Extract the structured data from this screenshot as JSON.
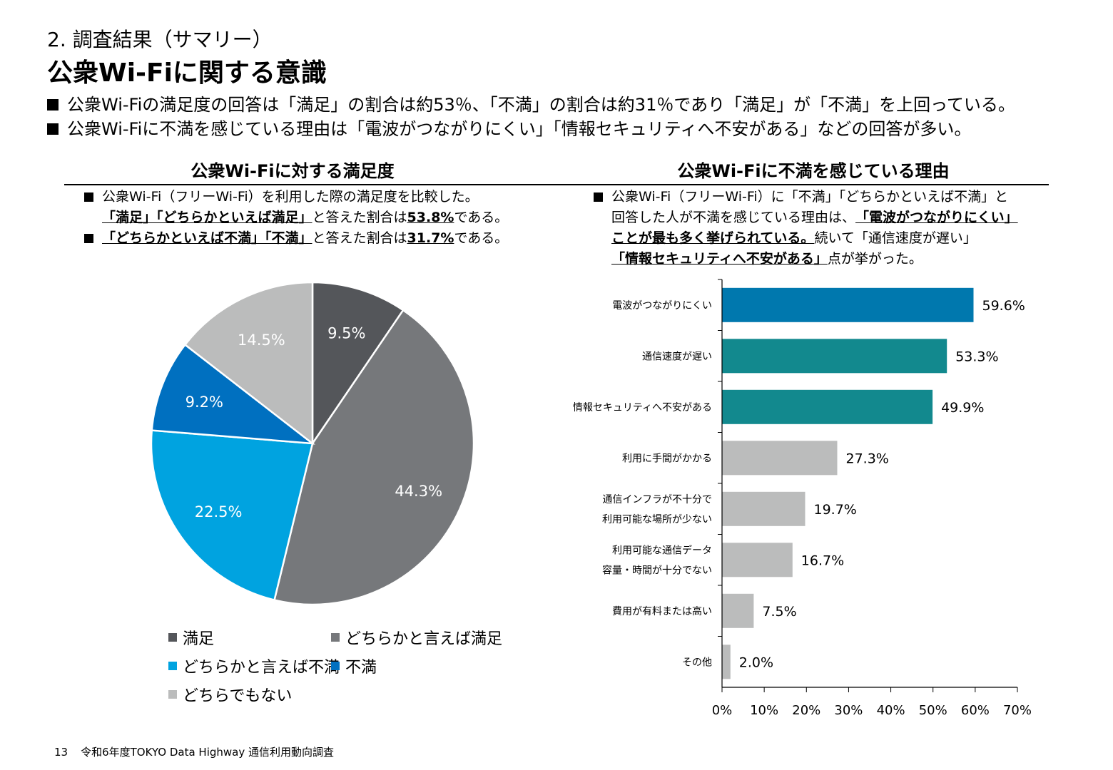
{
  "header": {
    "section_label": "2. 調査結果（サマリー）",
    "title": "公衆Wi-Fiに関する意識"
  },
  "summary": [
    "公衆Wi-Fiの満足度の回答は「満足」の割合は約53％、「不満」の割合は約31％であり「満足」が「不満」を上回っている。",
    "公衆Wi-Fiに不満を感じている理由は「電波がつながりにくい」「情報セキュリティへ不安がある」などの回答が多い。"
  ],
  "left_panel": {
    "title": "公衆Wi-Fiに対する満足度",
    "note": {
      "line1": "公衆Wi-Fi（フリーWi-Fi）を利用した際の満足度を比較した。",
      "line2_em": "「満足」「どちらかといえば満足」",
      "line2_mid": "と答えた割合は",
      "line2_val": "53.8%",
      "line2_end": "である。",
      "line3_em": "「どちらかといえば不満」「不満」",
      "line3_mid": "と答えた割合は",
      "line3_val": "31.7%",
      "line3_end": "である。"
    }
  },
  "right_panel": {
    "title": "公衆Wi-Fiに不満を感じている理由",
    "note": {
      "line1": "公衆Wi-Fi（フリーWi-Fi）に「不満」「どちらかといえば不満」と",
      "line2_pre": "回答した人が不満を感じている理由は、",
      "line2_em": "「電波がつながりにくい」",
      "line3_em": "ことが最も多く挙げられている。",
      "line3_end": "続いて「通信速度が遅い」",
      "line4_em": "「情報セキュリティへ不安がある」",
      "line4_end": "点が挙がった。"
    }
  },
  "chart_data": [
    {
      "type": "pie",
      "title": "公衆Wi-Fiに対する満足度",
      "slices": [
        {
          "label": "満足",
          "value": 9.5,
          "display": "9.5%",
          "color": "#54565A"
        },
        {
          "label": "どちらかと言えば満足",
          "value": 44.3,
          "display": "44.3%",
          "color": "#76787B"
        },
        {
          "label": "どちらかと言えば不満",
          "value": 22.5,
          "display": "22.5%",
          "color": "#00A3E0"
        },
        {
          "label": "不満",
          "value": 9.2,
          "display": "9.2%",
          "color": "#0070C0"
        },
        {
          "label": "どちらでもない",
          "value": 14.5,
          "display": "14.5%",
          "color": "#BBBCBC"
        }
      ],
      "legend_placement": "bottom"
    },
    {
      "type": "bar",
      "orientation": "horizontal",
      "title": "公衆Wi-Fiに不満を感じている理由",
      "categories": [
        [
          "電波がつながりにくい"
        ],
        [
          "通信速度が遅い"
        ],
        [
          "情報セキュリティへ不安がある"
        ],
        [
          "利用に手間がかかる"
        ],
        [
          "通信インフラが不十分で",
          "利用可能な場所が少ない"
        ],
        [
          "利用可能な通信データ",
          "容量・時間が十分でない"
        ],
        [
          "費用が有料または高い"
        ],
        [
          "その他"
        ]
      ],
      "values": [
        59.6,
        53.3,
        49.9,
        27.3,
        19.7,
        16.7,
        7.5,
        2.0
      ],
      "value_labels": [
        "59.6%",
        "53.3%",
        "49.9%",
        "27.3%",
        "19.7%",
        "16.7%",
        "7.5%",
        "2.0%"
      ],
      "colors": [
        "#0078AE",
        "#12898E",
        "#12898E",
        "#BBBCBC",
        "#BBBCBC",
        "#BBBCBC",
        "#BBBCBC",
        "#BBBCBC"
      ],
      "xlim": [
        0,
        70
      ],
      "xticks": [
        "0%",
        "10%",
        "20%",
        "30%",
        "40%",
        "50%",
        "60%",
        "70%"
      ],
      "grid": false
    }
  ],
  "footer": {
    "page_number": "13",
    "source": "令和6年度TOKYO Data Highway 通信利用動向調査"
  }
}
